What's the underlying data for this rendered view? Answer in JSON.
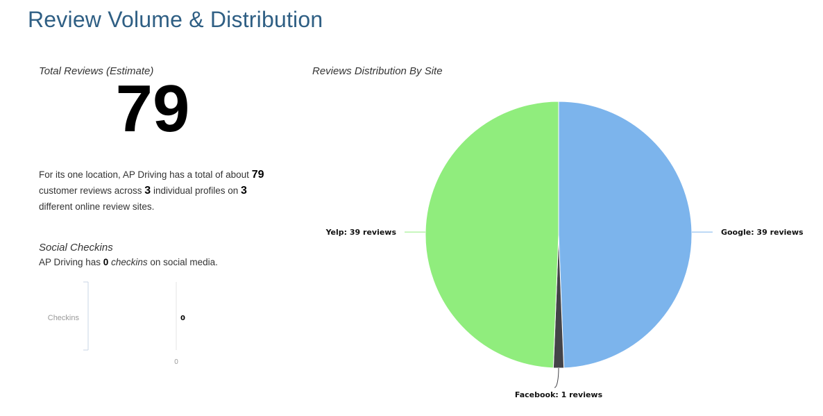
{
  "page": {
    "title": "Review Volume & Distribution"
  },
  "total_reviews": {
    "label": "Total Reviews (Estimate)",
    "value": "79"
  },
  "summary": {
    "part1": "For its one location, AP Driving has a total of about ",
    "total": "79",
    "part2": " customer reviews across ",
    "profiles": "3",
    "part3": " individual profiles on ",
    "sites": "3",
    "part4": " different online review sites."
  },
  "social": {
    "label": "Social Checkins",
    "part1": "AP Driving has ",
    "count": "0",
    "emph": "checkins",
    "part2": " on social media."
  },
  "chart_data": [
    {
      "type": "bar",
      "orientation": "horizontal",
      "categories": [
        "Checkins"
      ],
      "values": [
        0
      ],
      "data_labels": [
        "0"
      ],
      "x_ticks": [
        "0"
      ],
      "colors": {
        "axis": "#c9d6e6",
        "tick_text": "#999999"
      }
    },
    {
      "type": "pie",
      "title": "Reviews Distribution By Site",
      "start_angle_deg": 0,
      "direction": "clockwise",
      "slices": [
        {
          "name": "Google",
          "value": 39,
          "color": "#7cb4ec",
          "label": "Google: 39 reviews"
        },
        {
          "name": "Facebook",
          "value": 1,
          "color": "#434348",
          "label": "Facebook: 1 reviews"
        },
        {
          "name": "Yelp",
          "value": 39,
          "color": "#90ed7d",
          "label": "Yelp: 39 reviews"
        }
      ]
    }
  ]
}
